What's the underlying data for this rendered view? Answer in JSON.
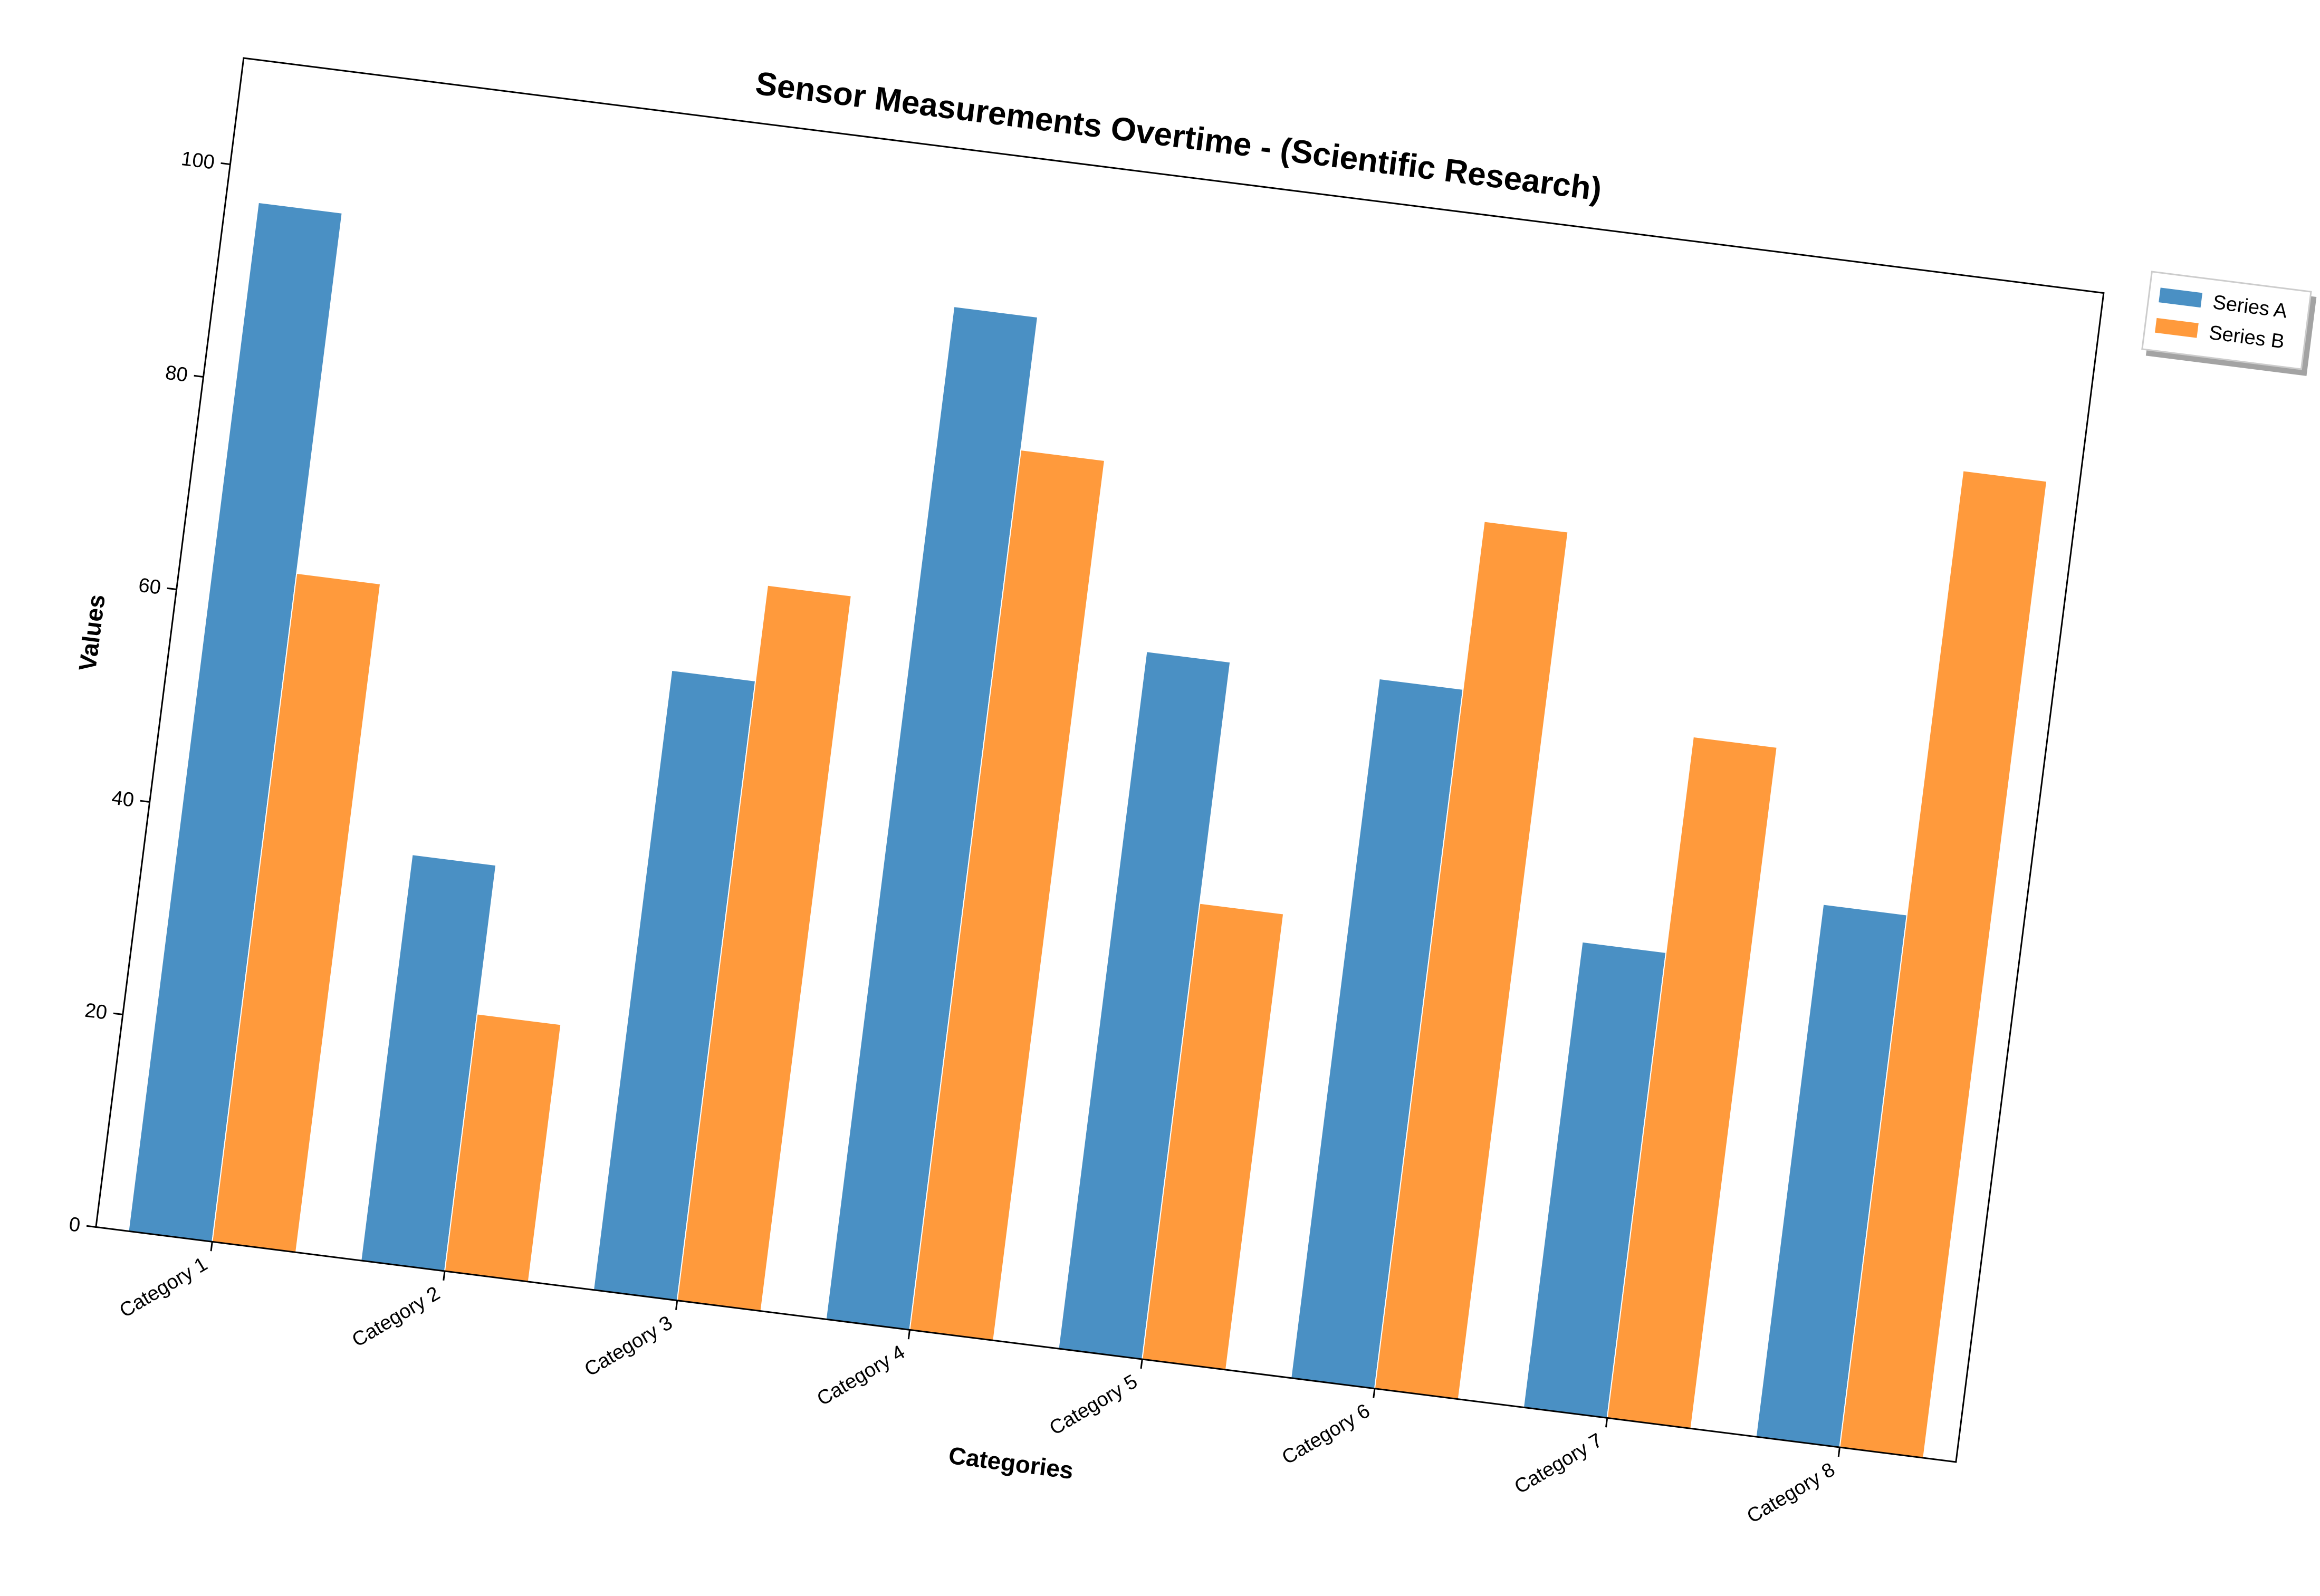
{
  "chart_data": {
    "type": "bar",
    "title": "Sensor Measurements Overtime - (Scientific Research)",
    "xlabel": "Categories",
    "ylabel": "Values",
    "ylim": [
      0,
      110
    ],
    "yticks": [
      "0",
      "20",
      "40",
      "60",
      "80",
      "100"
    ],
    "categories": [
      "Category 1",
      "Category 2",
      "Category 3",
      "Category 4",
      "Category 5",
      "Category 6",
      "Category 7",
      "Category 8"
    ],
    "series": [
      {
        "name": "Series A",
        "color": "#4a90c4",
        "values": [
          96.8,
          38.2,
          58.3,
          95.3,
          65.6,
          65.8,
          43.8,
          50.1
        ]
      },
      {
        "name": "Series B",
        "color": "#ff9a3c",
        "values": [
          62.9,
          24.2,
          67.3,
          82.8,
          42.9,
          81.6,
          64.1,
          91.9
        ]
      }
    ],
    "grid": false,
    "legend_position": "outside-top-right"
  }
}
